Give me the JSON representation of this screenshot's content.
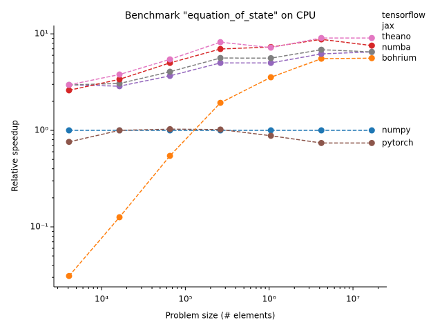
{
  "chart_data": {
    "type": "line",
    "title": "Benchmark \"equation_of_state\" on CPU",
    "x_label": "Problem size (# elements)",
    "y_label": "Relative speedup",
    "x": [
      4096,
      16384,
      65536,
      262144,
      1048576,
      4194304,
      16777216
    ],
    "x_scale": "log",
    "y_scale": "log",
    "minor_ticks": true,
    "grid": false,
    "legend": "right-end-labels",
    "xlim": [
      2700,
      25300000
    ],
    "ylim": [
      0.0239,
      12.2
    ],
    "xticks": [
      {
        "value": 10000,
        "label": "10⁴"
      },
      {
        "value": 100000,
        "label": "10⁵"
      },
      {
        "value": 1000000,
        "label": "10⁶"
      },
      {
        "value": 10000000,
        "label": "10⁷"
      }
    ],
    "yticks": [
      {
        "value": 0.1,
        "label": "10⁻¹"
      },
      {
        "value": 1,
        "label": "10⁰"
      },
      {
        "value": 10,
        "label": "10¹"
      }
    ],
    "series": [
      {
        "name": "numpy",
        "color": "#1f77b4",
        "values": [
          1.0,
          1.0,
          1.0,
          1.0,
          1.0,
          1.0,
          1.0
        ]
      },
      {
        "name": "pytorch",
        "color": "#8c564b",
        "values": [
          0.76,
          1.0,
          1.03,
          1.02,
          0.88,
          0.74,
          0.74
        ]
      },
      {
        "name": "bohrium",
        "color": "#ff7f0e",
        "values": [
          0.031,
          0.126,
          0.545,
          1.93,
          3.55,
          5.53,
          5.6
        ]
      },
      {
        "name": "numba",
        "color": "#9467bd",
        "values": [
          2.96,
          2.87,
          3.67,
          5.0,
          5.0,
          6.2,
          6.5
        ]
      },
      {
        "name": "theano",
        "color": "#7f7f7f",
        "values": [
          2.96,
          3.06,
          4.05,
          5.62,
          5.6,
          6.85,
          6.5
        ]
      },
      {
        "name": "jax",
        "color": "#d62728",
        "values": [
          2.6,
          3.38,
          5.0,
          6.97,
          7.3,
          8.77,
          7.56
        ]
      },
      {
        "name": "tensorflow",
        "color": "#e377c2",
        "values": [
          2.96,
          3.79,
          5.44,
          8.2,
          7.2,
          9.06,
          9.06
        ]
      }
    ]
  }
}
